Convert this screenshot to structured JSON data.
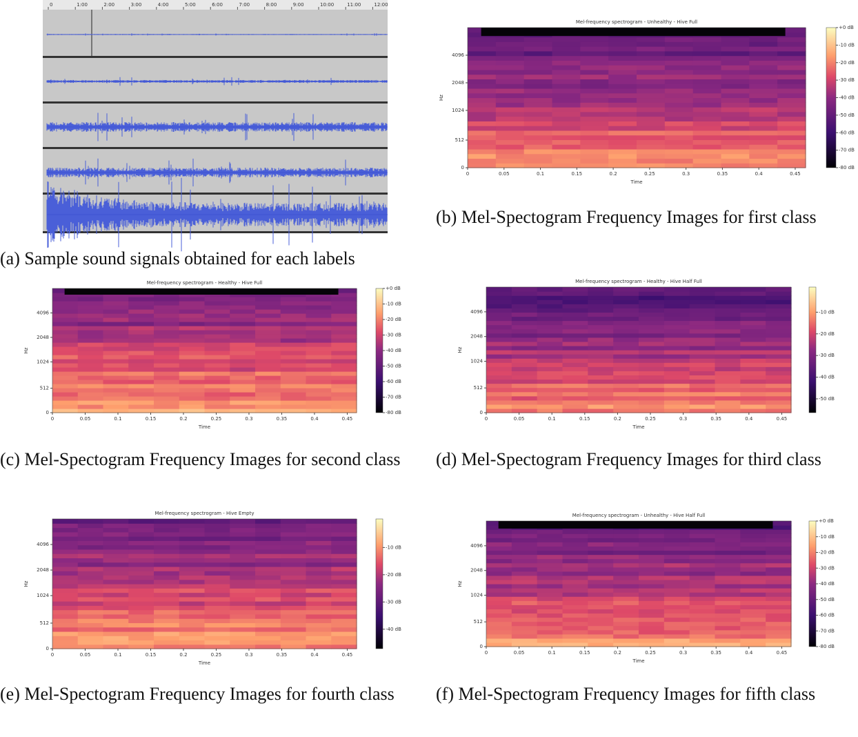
{
  "waveform": {
    "timeline": [
      "0",
      "1:00",
      "2:00",
      "3:00",
      "4:00",
      "5:00",
      "6:00",
      "7:00",
      "8:00",
      "9:00",
      "10:00",
      "11:00",
      "12:00"
    ],
    "caption": "(a) Sample sound signals obtained for each labels"
  },
  "spectrograms": [
    {
      "title": "Mel-frequency spectrogram - Unhealthy - Hive Full",
      "ylabel": "Hz",
      "yticks": [
        "0",
        "512",
        "1024",
        "2048",
        "4096"
      ],
      "xlabel": "Time",
      "xticks": [
        "0",
        "0.05",
        "0.1",
        "0.15",
        "0.2",
        "0.25",
        "0.3",
        "0.35",
        "0.4",
        "0.45"
      ],
      "colorbar": [
        "+0 dB",
        "-10 dB",
        "-20 dB",
        "-30 dB",
        "-40 dB",
        "-50 dB",
        "-60 dB",
        "-70 dB",
        "-80 dB"
      ],
      "caption": "(b) Mel-Spectogram Frequency Images for first class"
    },
    {
      "title": "Mel-frequency spectrogram - Healthy - Hive Full",
      "ylabel": "Hz",
      "yticks": [
        "0",
        "512",
        "1024",
        "2048",
        "4096"
      ],
      "xlabel": "Time",
      "xticks": [
        "0",
        "0.05",
        "0.1",
        "0.15",
        "0.2",
        "0.25",
        "0.3",
        "0.35",
        "0.4",
        "0.45"
      ],
      "colorbar": [
        "+0 dB",
        "-10 dB",
        "-20 dB",
        "-30 dB",
        "-40 dB",
        "-50 dB",
        "-60 dB",
        "-70 dB",
        "-80 dB"
      ],
      "caption": "(c) Mel-Spectogram Frequency Images for second class"
    },
    {
      "title": "Mel-frequency spectrogram - Healthy - Hive Half Full",
      "ylabel": "Hz",
      "yticks": [
        "0",
        "512",
        "1024",
        "2048",
        "4096"
      ],
      "xlabel": "Time",
      "xticks": [
        "0",
        "0.05",
        "0.1",
        "0.15",
        "0.2",
        "0.25",
        "0.3",
        "0.35",
        "0.4",
        "0.45"
      ],
      "colorbar": [
        "-10 dB",
        "-20 dB",
        "-30 dB",
        "-40 dB",
        "-50 dB"
      ],
      "caption": "(d) Mel-Spectogram Frequency Images for third class"
    },
    {
      "title": "Mel-frequency spectrogram - Hive Empty",
      "ylabel": "Hz",
      "yticks": [
        "0",
        "512",
        "1024",
        "2048",
        "4096"
      ],
      "xlabel": "Time",
      "xticks": [
        "0",
        "0.05",
        "0.1",
        "0.15",
        "0.2",
        "0.25",
        "0.3",
        "0.35",
        "0.4",
        "0.45"
      ],
      "colorbar": [
        "-10 dB",
        "-20 dB",
        "-30 dB",
        "-40 dB"
      ],
      "caption": "(e) Mel-Spectogram Frequency Images for fourth class"
    },
    {
      "title": "Mel-frequency spectrogram - Unhealthy - Hive Half Full",
      "ylabel": "Hz",
      "yticks": [
        "0",
        "512",
        "1024",
        "2048",
        "4096"
      ],
      "xlabel": "Time",
      "xticks": [
        "0",
        "0.05",
        "0.1",
        "0.15",
        "0.2",
        "0.25",
        "0.3",
        "0.35",
        "0.4",
        "0.45"
      ],
      "colorbar": [
        "+0 dB",
        "-10 dB",
        "-20 dB",
        "-30 dB",
        "-40 dB",
        "-50 dB",
        "-60 dB",
        "-70 dB",
        "-80 dB"
      ],
      "caption": "(f) Mel-Spectogram Frequency Images for fifth class"
    }
  ]
}
